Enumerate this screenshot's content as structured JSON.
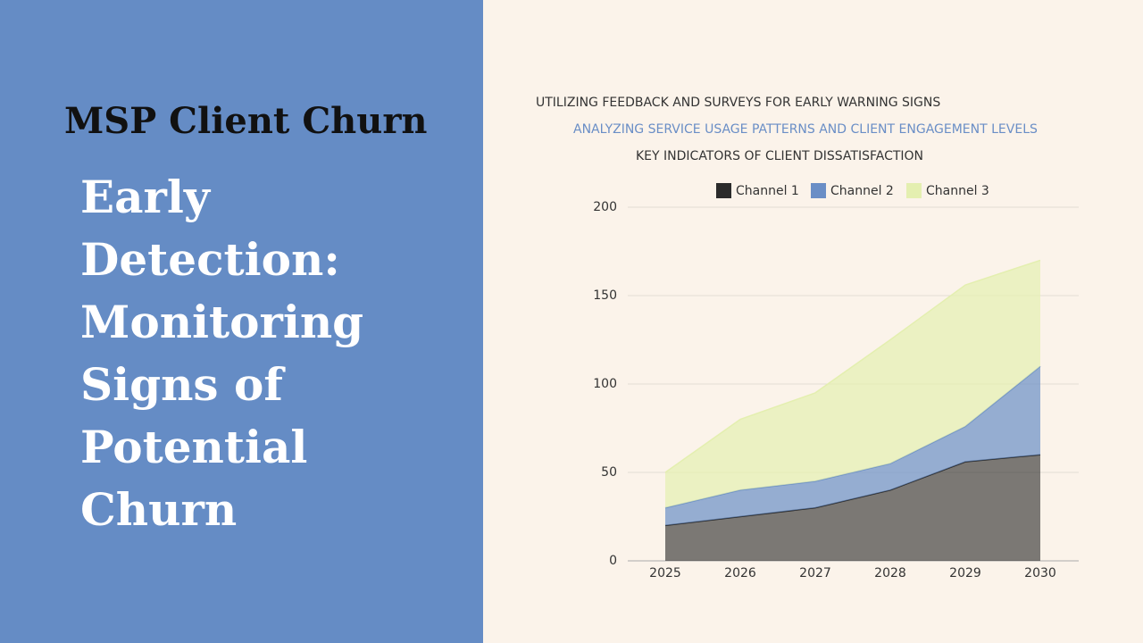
{
  "slide": {
    "heading": "MSP Client Churn",
    "body": "Early Detection: Monitoring Signs of Potential Churn"
  },
  "chart_data": {
    "type": "stacked_area",
    "subtitles": [
      "UTILIZING FEEDBACK AND SURVEYS FOR EARLY WARNING SIGNS",
      "ANALYZING SERVICE USAGE PATTERNS AND CLIENT ENGAGEMENT LEVELS",
      "KEY INDICATORS OF CLIENT DISSATISFACTION"
    ],
    "categories": [
      "2025",
      "2026",
      "2027",
      "2028",
      "2029",
      "2030"
    ],
    "series": [
      {
        "name": "Channel 1",
        "color": "#2b2b2b",
        "values": [
          20,
          25,
          30,
          40,
          56,
          60
        ]
      },
      {
        "name": "Channel 2",
        "color": "#6a8ec6",
        "values": [
          10,
          15,
          15,
          15,
          20,
          50
        ]
      },
      {
        "name": "Channel 3",
        "color": "#e4efb0",
        "values": [
          20,
          40,
          50,
          70,
          80,
          60
        ]
      }
    ],
    "ylim": [
      0,
      200
    ],
    "yticks": [
      0,
      50,
      100,
      150,
      200
    ],
    "grid": true,
    "legend": "top"
  }
}
